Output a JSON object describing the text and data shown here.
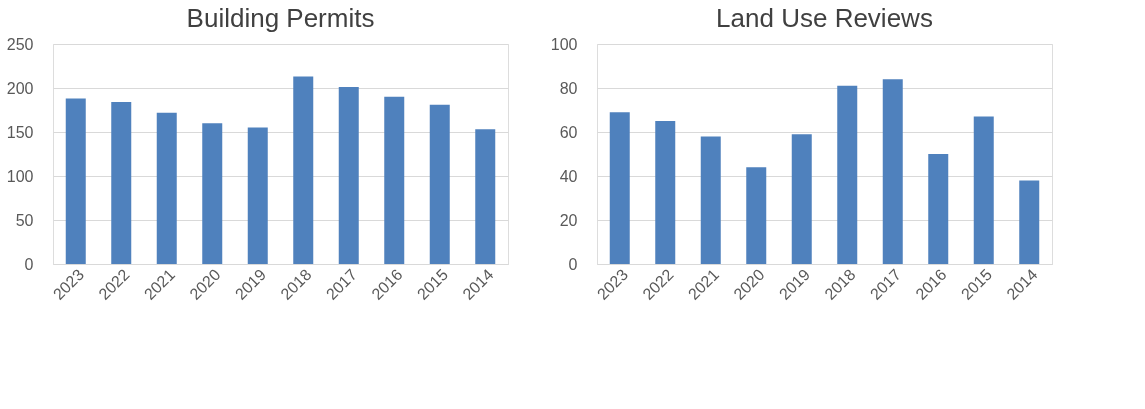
{
  "chart_data": [
    {
      "type": "bar",
      "title": "Building Permits",
      "categories": [
        "2023",
        "2022",
        "2021",
        "2020",
        "2019",
        "2018",
        "2017",
        "2016",
        "2015",
        "2014"
      ],
      "values": [
        188,
        184,
        172,
        160,
        155,
        213,
        201,
        190,
        181,
        153
      ],
      "color": "#4f81bd",
      "ylim": [
        0,
        250
      ],
      "yticks": [
        0,
        50,
        100,
        150,
        200,
        250
      ],
      "grid": "y"
    },
    {
      "type": "bar",
      "title": "Land Use Reviews",
      "categories": [
        "2023",
        "2022",
        "2021",
        "2020",
        "2019",
        "2018",
        "2017",
        "2016",
        "2015",
        "2014"
      ],
      "values": [
        69,
        65,
        58,
        44,
        59,
        81,
        84,
        50,
        67,
        38
      ],
      "color": "#4f81bd",
      "ylim": [
        0,
        100
      ],
      "yticks": [
        0,
        20,
        40,
        60,
        80,
        100
      ],
      "grid": "y"
    }
  ]
}
